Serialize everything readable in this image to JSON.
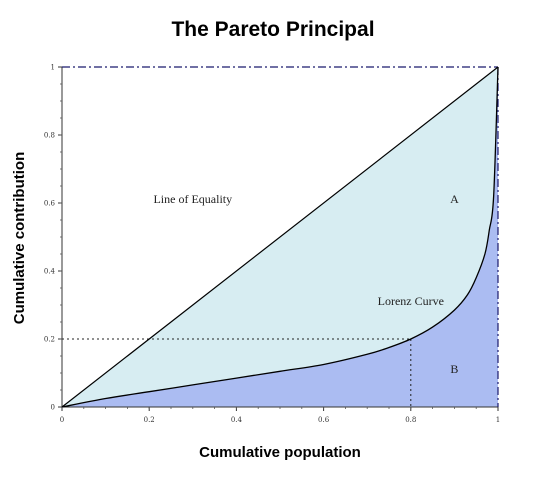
{
  "chart_data": {
    "type": "area",
    "title": "The Pareto Principal",
    "xlabel": "Cumulative population",
    "ylabel": "Cumulative contribution",
    "xlim": [
      0,
      1
    ],
    "ylim": [
      0,
      1
    ],
    "x_ticks": [
      "0",
      "0.2",
      "0.4",
      "0.6",
      "0.8",
      "1"
    ],
    "y_ticks": [
      "0",
      "0.2",
      "0.4",
      "0.6",
      "0.8",
      "1"
    ],
    "grid": false,
    "series": [
      {
        "label": "Line of Equality",
        "x": [
          0,
          1
        ],
        "y": [
          0,
          1
        ]
      },
      {
        "label": "Lorenz Curve",
        "x": [
          0,
          0.1,
          0.2,
          0.3,
          0.4,
          0.5,
          0.6,
          0.7,
          0.75,
          0.8,
          0.85,
          0.9,
          0.93,
          0.95,
          0.97,
          0.98,
          0.99,
          1.0
        ],
        "y": [
          0,
          0.025,
          0.045,
          0.065,
          0.085,
          0.105,
          0.125,
          0.155,
          0.175,
          0.2,
          0.235,
          0.285,
          0.33,
          0.38,
          0.45,
          0.52,
          0.62,
          1.0
        ]
      }
    ],
    "regions": [
      {
        "label": "A",
        "x": 0.9,
        "y": 0.6,
        "color": "#d7edf2"
      },
      {
        "label": "B",
        "x": 0.9,
        "y": 0.1,
        "color": "#abbcf2"
      }
    ],
    "reference_point": {
      "x": 0.8,
      "y": 0.2
    },
    "colors": {
      "area_a": "#d7edf2",
      "area_b": "#abbcf2",
      "line": "#000000",
      "frame": "#1a1a6e"
    }
  }
}
